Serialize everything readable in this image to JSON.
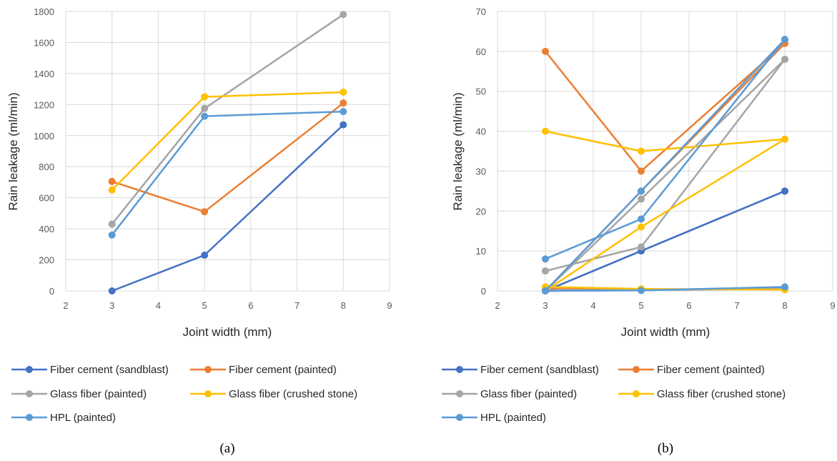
{
  "colors": {
    "fiber_cement_sandblast": "#4472C4",
    "fiber_cement_painted": "#ED7D31",
    "glass_fiber_painted": "#A5A5A5",
    "glass_fiber_crushed_stone": "#FFC000",
    "hpl_painted": "#5B9BD5",
    "grid": "#D9D9D9"
  },
  "chart_data": [
    {
      "type": "line",
      "caption": "(a)",
      "xlabel": "Joint width (mm)",
      "ylabel": "Rain leakage (ml/min)",
      "xlim": [
        2,
        9
      ],
      "ylim": [
        0,
        1800
      ],
      "xticks": [
        "2",
        "3",
        "4",
        "5",
        "6",
        "7",
        "8",
        "9"
      ],
      "yticks": [
        "0",
        "200",
        "400",
        "600",
        "800",
        "1000",
        "1200",
        "1400",
        "1600",
        "1800"
      ],
      "grid": true,
      "legend_position": "bottom",
      "series": [
        {
          "name": "Fiber cement (sandblast)",
          "color": "#4472C4",
          "lines": [
            [
              [
                3,
                0
              ],
              [
                5,
                230
              ],
              [
                8,
                1070
              ]
            ]
          ]
        },
        {
          "name": "Fiber cement (painted)",
          "color": "#ED7D31",
          "lines": [
            [
              [
                3,
                705
              ],
              [
                5,
                510
              ],
              [
                8,
                1210
              ]
            ]
          ]
        },
        {
          "name": "Glass fiber (painted)",
          "color": "#A5A5A5",
          "lines": [
            [
              [
                3,
                430
              ],
              [
                5,
                1175
              ],
              [
                8,
                1780
              ]
            ]
          ]
        },
        {
          "name": "Glass fiber (crushed stone)",
          "color": "#FFC000",
          "lines": [
            [
              [
                3,
                650
              ],
              [
                5,
                1250
              ],
              [
                8,
                1280
              ]
            ]
          ]
        },
        {
          "name": "HPL (painted)",
          "color": "#5B9BD5",
          "lines": [
            [
              [
                3,
                360
              ],
              [
                5,
                1125
              ],
              [
                8,
                1155
              ]
            ]
          ]
        }
      ]
    },
    {
      "type": "line",
      "caption": "(b)",
      "xlabel": "Joint width (mm)",
      "ylabel": "Rain leakage (ml/min)",
      "xlim": [
        2,
        9
      ],
      "ylim": [
        0,
        70
      ],
      "xticks": [
        "2",
        "3",
        "4",
        "5",
        "6",
        "7",
        "8",
        "9"
      ],
      "yticks": [
        "0",
        "10",
        "20",
        "30",
        "40",
        "50",
        "60",
        "70"
      ],
      "grid": true,
      "legend_position": "bottom",
      "series": [
        {
          "name": "Fiber cement (sandblast)",
          "color": "#4472C4",
          "lines": [
            [
              [
                3,
                0
              ],
              [
                5,
                10
              ],
              [
                8,
                25
              ]
            ],
            [
              [
                3,
                0
              ],
              [
                5,
                10
              ],
              [
                8,
                25
              ]
            ],
            [
              [
                3,
                0
              ],
              [
                5,
                0.2
              ],
              [
                8,
                0.8
              ]
            ]
          ]
        },
        {
          "name": "Fiber cement (painted)",
          "color": "#ED7D31",
          "lines": [
            [
              [
                3,
                60
              ],
              [
                5,
                30
              ],
              [
                8,
                62
              ]
            ],
            [
              [
                3,
                0
              ],
              [
                5,
                25
              ],
              [
                8,
                62
              ]
            ],
            [
              [
                3,
                0.5
              ],
              [
                5,
                0.3
              ],
              [
                8,
                0.5
              ]
            ]
          ]
        },
        {
          "name": "Glass fiber (painted)",
          "color": "#A5A5A5",
          "lines": [
            [
              [
                3,
                5
              ],
              [
                5,
                11
              ],
              [
                8,
                58
              ]
            ],
            [
              [
                3,
                0
              ],
              [
                5,
                23
              ],
              [
                8,
                58
              ]
            ],
            [
              [
                3,
                0.2
              ],
              [
                5,
                0.2
              ],
              [
                8,
                0.5
              ]
            ]
          ]
        },
        {
          "name": "Glass fiber (crushed stone)",
          "color": "#FFC000",
          "lines": [
            [
              [
                3,
                40
              ],
              [
                5,
                35
              ],
              [
                8,
                38
              ]
            ],
            [
              [
                3,
                0
              ],
              [
                5,
                16
              ],
              [
                8,
                38
              ]
            ],
            [
              [
                3,
                1
              ],
              [
                5,
                0.5
              ],
              [
                8,
                0.3
              ]
            ]
          ]
        },
        {
          "name": "HPL (painted)",
          "color": "#5B9BD5",
          "lines": [
            [
              [
                3,
                8
              ],
              [
                5,
                18
              ],
              [
                8,
                63
              ]
            ],
            [
              [
                3,
                0
              ],
              [
                5,
                25
              ],
              [
                8,
                63
              ]
            ],
            [
              [
                3,
                0
              ],
              [
                5,
                0.1
              ],
              [
                8,
                1
              ]
            ]
          ]
        }
      ]
    }
  ]
}
